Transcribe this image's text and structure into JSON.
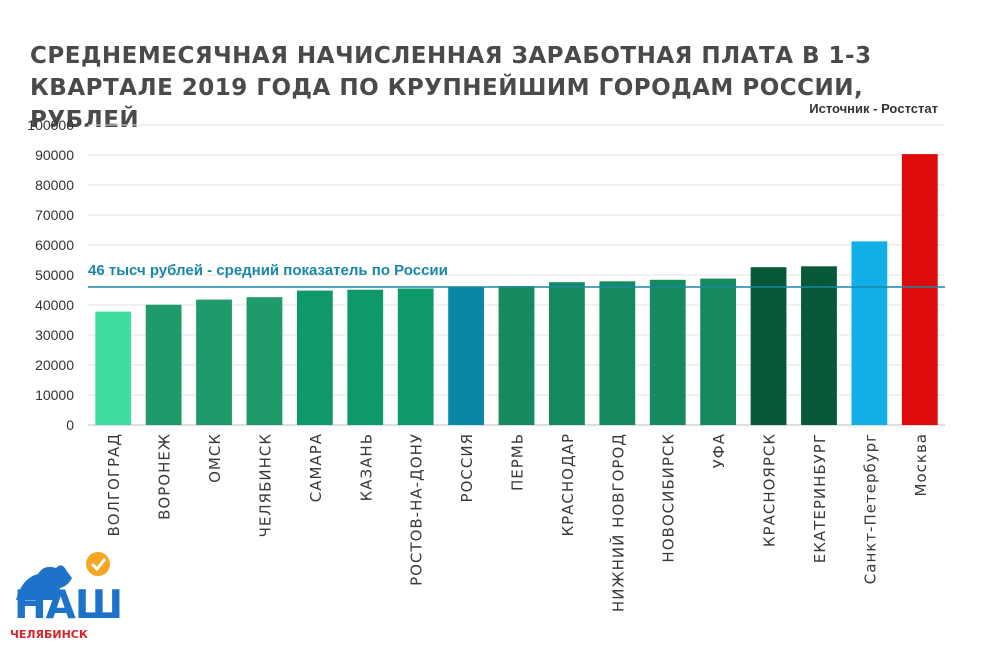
{
  "chart_data": {
    "type": "bar",
    "title": "СРЕДНЕМЕСЯЧНАЯ НАЧИСЛЕННАЯ ЗАРАБОТНАЯ ПЛАТА В 1-3 КВАРТАЛЕ 2019 ГОДА ПО КРУПНЕЙШИМ ГОРОДАМ РОССИИ, РУБЛЕЙ",
    "source": "Источник - Роcтстат",
    "ylim": [
      0,
      100000
    ],
    "yticks": [
      0,
      10000,
      20000,
      30000,
      40000,
      50000,
      60000,
      70000,
      80000,
      90000,
      100000
    ],
    "grid": true,
    "categories": [
      "ВОЛГОГРАД",
      "ВОРОНЕЖ",
      "ОМСК",
      "ЧЕЛЯБИНСК",
      "САМАРА",
      "КАЗАНЬ",
      "РОСТОВ-НА-ДОНУ",
      "РОССИЯ",
      "ПЕРМЬ",
      "КРАСНОДАР",
      "НИЖНИЙ НОВГОРОД",
      "НОВОСИБИРСК",
      "УФА",
      "КРАСНОЯРСК",
      "ЕКАТЕРИНБУРГ",
      "Санкт-Петербург",
      "Москва"
    ],
    "values": [
      37800,
      40100,
      41800,
      42600,
      44800,
      45100,
      45500,
      46000,
      46300,
      47600,
      47900,
      48400,
      48800,
      52600,
      52900,
      61200,
      90300
    ],
    "colors": [
      "#3fdc9e",
      "#1f9a6a",
      "#1f9a6a",
      "#1f9a6a",
      "#0e9968",
      "#0e9968",
      "#0e9968",
      "#0a86a6",
      "#148a5e",
      "#148a5e",
      "#148a5e",
      "#148a5e",
      "#148a5e",
      "#075937",
      "#075937",
      "#12aee8",
      "#dd0b0b"
    ],
    "reference_line": {
      "value": 46000,
      "label": "46 тысч рублей  - средний показатель по России",
      "color": "#1a87a8"
    }
  },
  "logo": {
    "main": "НАШ",
    "sub": "ЧЕЛЯБИНСК"
  }
}
